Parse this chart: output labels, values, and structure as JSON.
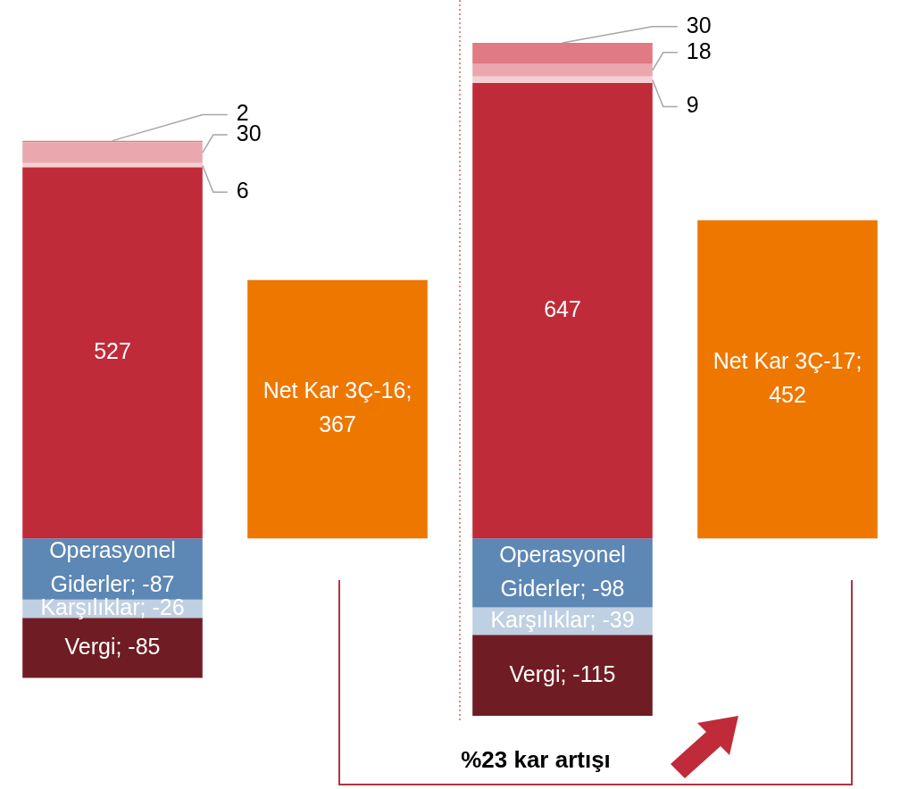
{
  "chart_data": {
    "type": "bar",
    "stacked": true,
    "categories": [
      null,
      null,
      null,
      null
    ],
    "ylim": [
      -252,
      704
    ],
    "tick_labels": false,
    "legend": false,
    "series": [
      {
        "color": "#c02b39",
        "values": [
          527,
          null,
          647,
          null
        ],
        "value_labels": [
          "527",
          null,
          "647",
          null
        ]
      },
      {
        "color": "#f4cfd3",
        "values": [
          6,
          null,
          9,
          null
        ],
        "value_labels": [
          "6",
          null,
          "9",
          null
        ]
      },
      {
        "color": "#eaa7ae",
        "values": [
          30,
          null,
          18,
          null
        ],
        "value_labels": [
          "30",
          null,
          "18",
          null
        ]
      },
      {
        "color": "#e07a83",
        "values": [
          2,
          null,
          30,
          null
        ],
        "value_labels": [
          "2",
          null,
          "30",
          null
        ]
      },
      {
        "color": "#5d87b4",
        "values": [
          -87,
          null,
          -98,
          null
        ],
        "value_labels": [
          "Operasyonel Giderler; -87",
          null,
          "Operasyonel Giderler; -98",
          null
        ]
      },
      {
        "color": "#bfd0e2",
        "values": [
          -26,
          null,
          -39,
          null
        ],
        "value_labels": [
          "Karşılıklar; -26",
          null,
          "Karşılıklar; -39",
          null
        ]
      },
      {
        "color": "#701c24",
        "values": [
          -85,
          null,
          -115,
          null
        ],
        "value_labels": [
          "Vergi; -85",
          null,
          "Vergi; -115",
          null
        ]
      },
      {
        "color": "#ee7700",
        "values": [
          null,
          367,
          null,
          null
        ],
        "value_labels": [
          null,
          "Net Kar 3Ç-16; 367",
          null,
          null
        ]
      },
      {
        "color": "#ee7700",
        "values": [
          null,
          null,
          null,
          452
        ],
        "value_labels": [
          null,
          null,
          null,
          "Net Kar 3Ç-17; 452"
        ]
      }
    ],
    "annotations": [
      "%23 kar artışı"
    ]
  }
}
